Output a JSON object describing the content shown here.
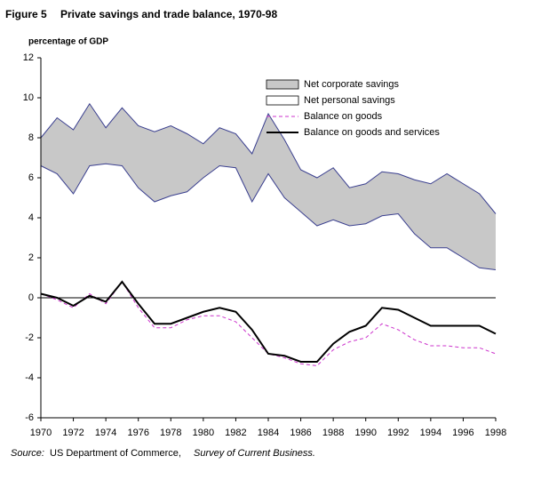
{
  "chart_data": {
    "type": "line",
    "figure_label": "Figure 5",
    "title": "Private savings and trade balance, 1970-98",
    "y_label": "percentage of GDP",
    "source_label": "Source:",
    "source_text": "US Department of Commerce,",
    "source_publication": "Survey of Current Business.",
    "x": [
      1970,
      1971,
      1972,
      1973,
      1974,
      1975,
      1976,
      1977,
      1978,
      1979,
      1980,
      1981,
      1982,
      1983,
      1984,
      1985,
      1986,
      1987,
      1988,
      1989,
      1990,
      1991,
      1992,
      1993,
      1994,
      1995,
      1996,
      1997,
      1998
    ],
    "series": [
      {
        "name": "Net corporate savings",
        "color": "#c8c8c8",
        "style": "area",
        "stack": 1,
        "values": [
          1.4,
          2.8,
          3.2,
          3.1,
          1.8,
          2.9,
          3.1,
          3.5,
          3.5,
          2.9,
          1.7,
          1.9,
          1.7,
          2.4,
          3.0,
          2.9,
          2.1,
          2.4,
          2.6,
          1.9,
          2.0,
          2.2,
          2.0,
          2.7,
          3.2,
          3.7,
          3.7,
          3.7,
          2.8
        ]
      },
      {
        "name": "Net personal savings",
        "color": "#ffffff",
        "style": "area",
        "stack": 0,
        "values": [
          6.6,
          6.2,
          5.2,
          6.6,
          6.7,
          6.6,
          5.5,
          4.8,
          5.1,
          5.3,
          6.0,
          6.6,
          6.5,
          4.8,
          6.2,
          5.0,
          4.3,
          3.6,
          3.9,
          3.6,
          3.7,
          4.1,
          4.2,
          3.2,
          2.5,
          2.5,
          2.0,
          1.5,
          1.4
        ]
      },
      {
        "name": "Balance on goods",
        "color": "#cc33cc",
        "style": "dashed",
        "values": [
          0.2,
          -0.1,
          -0.5,
          0.2,
          -0.3,
          0.8,
          -0.5,
          -1.5,
          -1.5,
          -1.1,
          -0.9,
          -0.9,
          -1.2,
          -2.0,
          -2.8,
          -3.0,
          -3.3,
          -3.4,
          -2.6,
          -2.2,
          -2.0,
          -1.3,
          -1.6,
          -2.1,
          -2.4,
          -2.4,
          -2.5,
          -2.5,
          -2.8
        ]
      },
      {
        "name": "Balance on goods and services",
        "color": "#000000",
        "style": "solid",
        "values": [
          0.2,
          0.0,
          -0.4,
          0.1,
          -0.2,
          0.8,
          -0.3,
          -1.3,
          -1.3,
          -1.0,
          -0.7,
          -0.5,
          -0.7,
          -1.6,
          -2.8,
          -2.9,
          -3.2,
          -3.2,
          -2.3,
          -1.7,
          -1.4,
          -0.5,
          -0.6,
          -1.0,
          -1.4,
          -1.4,
          -1.4,
          -1.4,
          -1.8
        ]
      }
    ],
    "xlim": [
      1970,
      1998
    ],
    "xticks": [
      1970,
      1972,
      1974,
      1976,
      1978,
      1980,
      1982,
      1984,
      1986,
      1988,
      1990,
      1992,
      1994,
      1996,
      1998
    ],
    "ylim": [
      -6,
      12
    ],
    "yticks": [
      -6,
      -4,
      -2,
      0,
      2,
      4,
      6,
      8,
      10,
      12
    ],
    "grid": false,
    "legend": "upper right"
  }
}
